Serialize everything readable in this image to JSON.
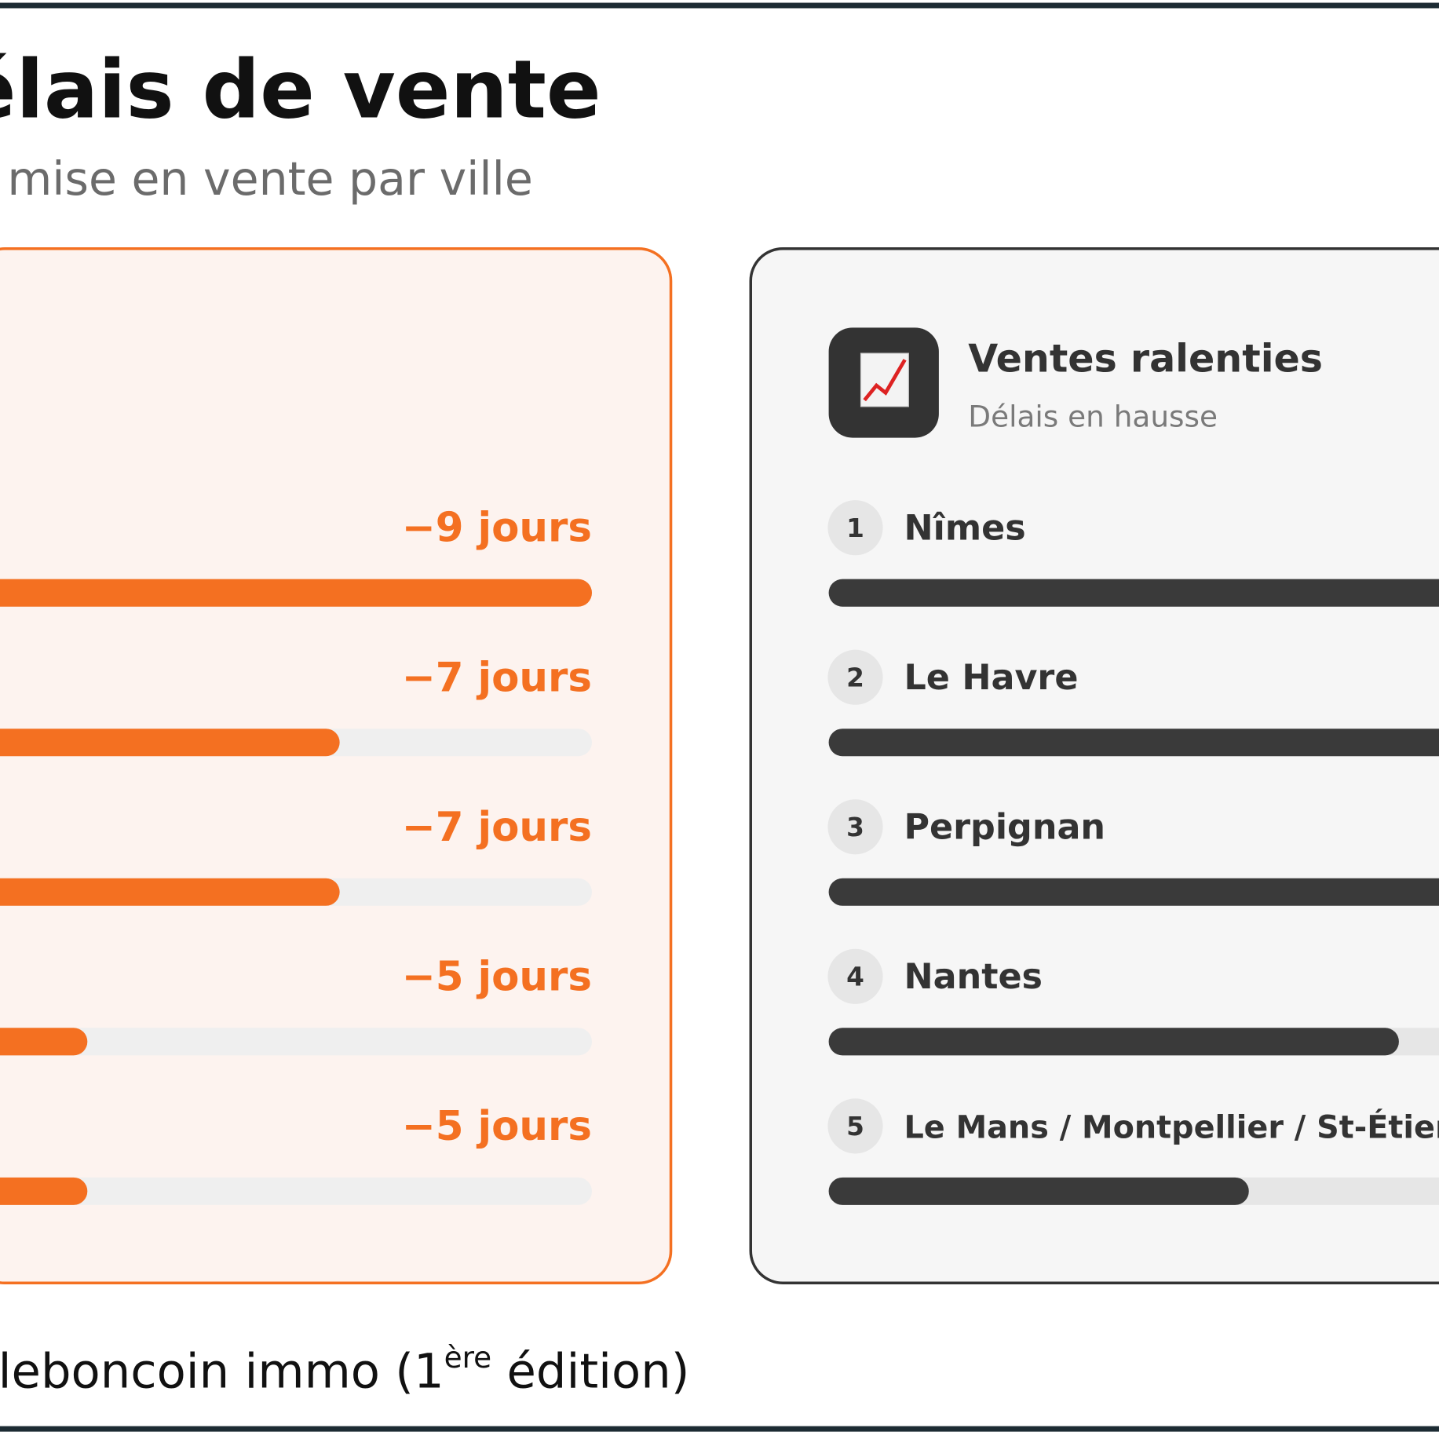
{
  "title": "délais de vente",
  "subtitle": "mise en vente par ville",
  "footer": {
    "text": "leboncoin immo (1",
    "sup": "ère",
    "tail": " édition)"
  },
  "chart_data": [
    {
      "type": "bar",
      "orientation": "horizontal",
      "color": "#f47021",
      "track_color": "#efefef",
      "values": [
        -9,
        -7,
        -7,
        -5,
        -5
      ],
      "value_labels": [
        "−9 jours",
        "−7 jours",
        "−7 jours",
        "−5 jours",
        "−5 jours"
      ]
    },
    {
      "type": "bar",
      "orientation": "horizontal",
      "color": "#3a3a3a",
      "track_color": "#e6e6e6",
      "title": "Ventes ralenties",
      "subtitle": "Délais en hausse",
      "ranks": [
        1,
        2,
        3,
        4,
        5
      ],
      "categories": [
        "Nîmes",
        "Le Havre",
        "Perpignan",
        "Nantes",
        "Le Mans / Montpellier / St-Étienne"
      ],
      "values": [
        30,
        28,
        26,
        19,
        14
      ]
    }
  ]
}
